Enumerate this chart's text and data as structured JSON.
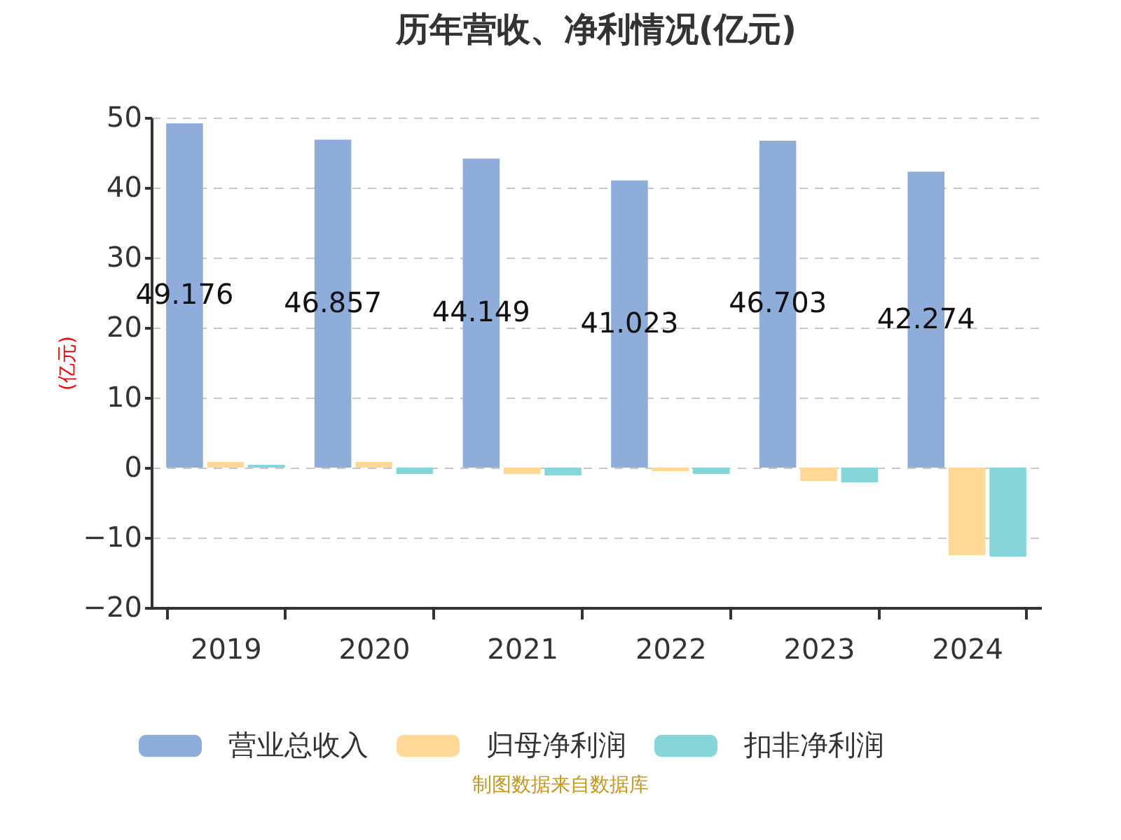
{
  "chart_data": {
    "type": "bar",
    "title": "历年营收、净利情况(亿元)",
    "ylabel": "(亿元)",
    "categories": [
      "2019",
      "2020",
      "2021",
      "2022",
      "2023",
      "2024"
    ],
    "series": [
      {
        "name": "营业总收入",
        "color": "#8eaddb",
        "values": [
          49.176,
          46.857,
          44.149,
          41.023,
          46.703,
          42.274
        ],
        "value_labels": [
          "49.176",
          "46.857",
          "44.149",
          "41.023",
          "46.703",
          "42.274"
        ]
      },
      {
        "name": "归母净利润",
        "color": "#ffd797",
        "values": [
          0.8,
          0.8,
          -0.9,
          -0.5,
          -1.9,
          -12.5
        ]
      },
      {
        "name": "扣非净利润",
        "color": "#86d5d8",
        "values": [
          0.4,
          -0.9,
          -1.1,
          -0.9,
          -2.1,
          -12.7
        ]
      }
    ],
    "ylim": [
      -20,
      50
    ],
    "yticks": [
      -20,
      -10,
      0,
      10,
      20,
      30,
      40,
      50
    ],
    "grid": "y",
    "legend": "bottom",
    "annotations": [
      "制图数据来自数据库"
    ]
  }
}
